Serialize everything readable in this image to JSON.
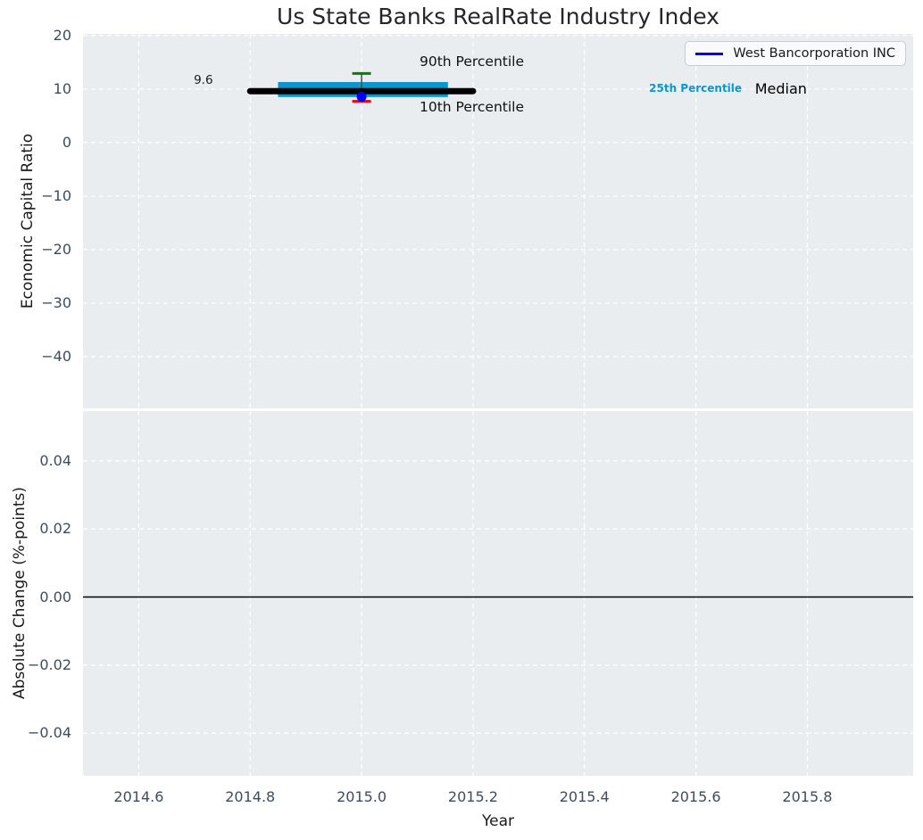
{
  "colors": {
    "axes_bg": "#e9edf0",
    "grid": "#ffffff",
    "tick_label": "#3e4d5c",
    "whisker": "#4d4d4d"
  },
  "chart_data": [
    {
      "type": "percentile_band",
      "title": "Us State Banks RealRate Industry Index",
      "ylabel": "Economic Capital Ratio",
      "xlabel": "",
      "xlim": [
        2014.5,
        2015.99
      ],
      "ylim": [
        -49.7,
        20.3
      ],
      "grid": true,
      "xticks": [
        {
          "v": 2014.6,
          "label": "2014.6"
        },
        {
          "v": 2014.8,
          "label": "2014.8"
        },
        {
          "v": 2015.0,
          "label": "2015.0"
        },
        {
          "v": 2015.2,
          "label": "2015.2"
        },
        {
          "v": 2015.4,
          "label": "2015.4"
        },
        {
          "v": 2015.6,
          "label": "2015.6"
        },
        {
          "v": 2015.8,
          "label": "2015.8"
        }
      ],
      "yticks": [
        {
          "v": 20,
          "label": "20"
        },
        {
          "v": 10,
          "label": "10"
        },
        {
          "v": 0,
          "label": "0"
        },
        {
          "v": -10,
          "label": "−10"
        },
        {
          "v": -20,
          "label": "−20"
        },
        {
          "v": -30,
          "label": "−30"
        },
        {
          "v": -40,
          "label": "−40"
        }
      ],
      "legend": {
        "position": "upper right",
        "entries": [
          {
            "label": "West Bancorporation INC",
            "color": "#0000ff",
            "marker": "line"
          }
        ]
      },
      "series": {
        "median": {
          "label": "Median",
          "x0": 2014.8,
          "x1": 2015.2,
          "value": 9.6,
          "color": "#000000"
        },
        "quartile_band": {
          "label": "25th-75th Percentile",
          "x0": 2014.85,
          "x1": 2015.155,
          "p25": 8.5,
          "p75": 11.3,
          "color": "#0899cc"
        },
        "p90": {
          "label": "90th Percentile",
          "x": 2015.0,
          "value": 12.9,
          "color": "#008000"
        },
        "p10": {
          "label": "10th Percentile",
          "x": 2015.0,
          "value": 7.7,
          "color": "#ee0000"
        },
        "company": {
          "label": "West Bancorporation INC",
          "x": 2015.0,
          "value": 8.55,
          "color": "#0000ff"
        }
      },
      "annotations": [
        {
          "text": "9.6",
          "x": 2014.716,
          "y": 11.5,
          "size": 13.5,
          "color": "#1a1a1a",
          "align": "center",
          "weight": 400
        },
        {
          "text": "90th Percentile",
          "x": 2015.104,
          "y": 14.9,
          "size": 15.5,
          "color": "#111111",
          "align": "left",
          "weight": 400
        },
        {
          "text": "10th Percentile",
          "x": 2015.104,
          "y": 6.4,
          "size": 15.5,
          "color": "#111111",
          "align": "left",
          "weight": 400
        },
        {
          "text": "25th Percentile",
          "x": 2015.516,
          "y": 10.0,
          "size": 12,
          "color": "#0899cc",
          "align": "left",
          "weight": 700
        },
        {
          "text": "Median",
          "x": 2015.706,
          "y": 10.0,
          "size": 16,
          "color": "#000000",
          "align": "left",
          "weight": 400
        }
      ]
    },
    {
      "type": "line",
      "title": "",
      "ylabel": "Absolute Change (%-points)",
      "xlabel": "Year",
      "xlim": [
        2014.5,
        2015.99
      ],
      "ylim": [
        -0.0525,
        0.0546
      ],
      "grid": true,
      "xticks": [
        {
          "v": 2014.6,
          "label": "2014.6"
        },
        {
          "v": 2014.8,
          "label": "2014.8"
        },
        {
          "v": 2015.0,
          "label": "2015.0"
        },
        {
          "v": 2015.2,
          "label": "2015.2"
        },
        {
          "v": 2015.4,
          "label": "2015.4"
        },
        {
          "v": 2015.6,
          "label": "2015.6"
        },
        {
          "v": 2015.8,
          "label": "2015.8"
        }
      ],
      "yticks": [
        {
          "v": 0.04,
          "label": "0.04"
        },
        {
          "v": 0.02,
          "label": "0.02"
        },
        {
          "v": 0.0,
          "label": "0.00"
        },
        {
          "v": -0.02,
          "label": "−0.02"
        },
        {
          "v": -0.04,
          "label": "−0.04"
        }
      ],
      "zero_line": {
        "value": 0.0,
        "color": "#000000"
      }
    }
  ]
}
